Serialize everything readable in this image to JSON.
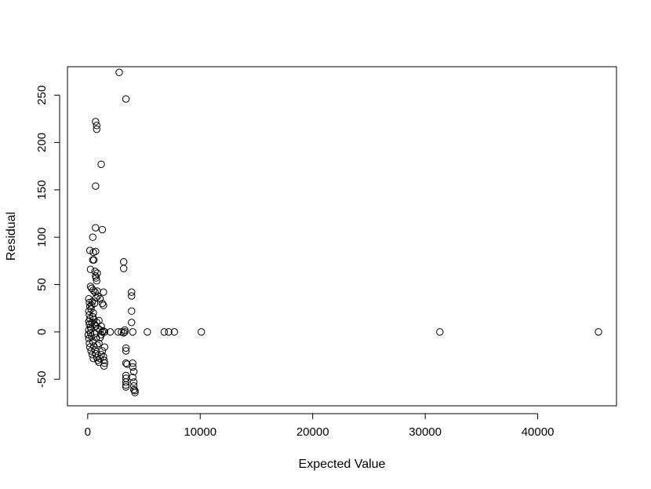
{
  "chart_data": {
    "type": "scatter",
    "title": "",
    "xlabel": "Expected Value",
    "ylabel": "Residual",
    "xlim": [
      -1800,
      47000
    ],
    "ylim": [
      -78,
      280
    ],
    "x_ticks": [
      0,
      10000,
      20000,
      30000,
      40000
    ],
    "x_tick_labels": [
      "0",
      "10000",
      "20000",
      "30000",
      "40000"
    ],
    "y_ticks": [
      -50,
      0,
      50,
      100,
      150,
      200,
      250
    ],
    "y_tick_labels": [
      "-50",
      "0",
      "50",
      "100",
      "150",
      "200",
      "250"
    ],
    "grid": false,
    "legend": "none",
    "marker": "open-circle",
    "colors": {
      "points": "#000000",
      "frame": "#000000",
      "background": "#ffffff"
    },
    "series": [
      {
        "points": [
          [
            2800,
            274
          ],
          [
            3400,
            246
          ],
          [
            700,
            222
          ],
          [
            800,
            218
          ],
          [
            800,
            214
          ],
          [
            1200,
            177
          ],
          [
            700,
            154
          ],
          [
            1300,
            108
          ],
          [
            700,
            110
          ],
          [
            200,
            86
          ],
          [
            500,
            84
          ],
          [
            700,
            85
          ],
          [
            450,
            100
          ],
          [
            450,
            76
          ],
          [
            550,
            76
          ],
          [
            250,
            66
          ],
          [
            650,
            64
          ],
          [
            700,
            59
          ],
          [
            850,
            62
          ],
          [
            750,
            57
          ],
          [
            800,
            54
          ],
          [
            250,
            48
          ],
          [
            350,
            46
          ],
          [
            500,
            44
          ],
          [
            650,
            42
          ],
          [
            850,
            43
          ],
          [
            1400,
            42
          ],
          [
            900,
            38
          ],
          [
            1100,
            35
          ],
          [
            1300,
            30
          ],
          [
            1400,
            28
          ],
          [
            100,
            35
          ],
          [
            150,
            31
          ],
          [
            200,
            27
          ],
          [
            300,
            24
          ],
          [
            100,
            22
          ],
          [
            150,
            18
          ],
          [
            200,
            14
          ],
          [
            100,
            11
          ],
          [
            150,
            8
          ],
          [
            250,
            5
          ],
          [
            300,
            3
          ],
          [
            100,
            2
          ],
          [
            350,
            10
          ],
          [
            450,
            16
          ],
          [
            500,
            20
          ],
          [
            550,
            13
          ],
          [
            600,
            8
          ],
          [
            700,
            6
          ],
          [
            800,
            10
          ],
          [
            900,
            4
          ],
          [
            1000,
            12
          ],
          [
            1100,
            2
          ],
          [
            1200,
            6
          ],
          [
            1300,
            0
          ],
          [
            1400,
            1
          ],
          [
            1500,
            0
          ],
          [
            50,
            -3
          ],
          [
            100,
            -7
          ],
          [
            150,
            -12
          ],
          [
            200,
            -16
          ],
          [
            300,
            -20
          ],
          [
            400,
            -24
          ],
          [
            500,
            -28
          ],
          [
            350,
            -5
          ],
          [
            450,
            -10
          ],
          [
            550,
            -15
          ],
          [
            650,
            -19
          ],
          [
            700,
            -23
          ],
          [
            800,
            -27
          ],
          [
            900,
            -30
          ],
          [
            1000,
            -32
          ],
          [
            1100,
            -28
          ],
          [
            1200,
            -24
          ],
          [
            1300,
            -20
          ],
          [
            1400,
            -26
          ],
          [
            1500,
            -33
          ],
          [
            1450,
            -36
          ],
          [
            1450,
            -30
          ],
          [
            1500,
            -16
          ],
          [
            1000,
            -12
          ],
          [
            1100,
            -6
          ],
          [
            1200,
            -3
          ],
          [
            600,
            -2
          ],
          [
            750,
            -6
          ],
          [
            850,
            -14
          ],
          [
            250,
            -1
          ],
          [
            350,
            28
          ],
          [
            400,
            32
          ],
          [
            600,
            30
          ],
          [
            750,
            36
          ],
          [
            3200,
            74
          ],
          [
            3200,
            67
          ],
          [
            3900,
            42
          ],
          [
            3900,
            38
          ],
          [
            3900,
            22
          ],
          [
            3900,
            10
          ],
          [
            3300,
            2
          ],
          [
            3300,
            0
          ],
          [
            3200,
            -1
          ],
          [
            3400,
            -17
          ],
          [
            3400,
            -20
          ],
          [
            3400,
            -33
          ],
          [
            3500,
            -34
          ],
          [
            4000,
            -33
          ],
          [
            4000,
            -37
          ],
          [
            4100,
            -42
          ],
          [
            4000,
            -48
          ],
          [
            3400,
            -46
          ],
          [
            3400,
            -49
          ],
          [
            3400,
            -53
          ],
          [
            3400,
            -56
          ],
          [
            3400,
            -58
          ],
          [
            4100,
            -53
          ],
          [
            4100,
            -57
          ],
          [
            4100,
            -61
          ],
          [
            4200,
            -62
          ],
          [
            4200,
            -64
          ],
          [
            2000,
            0
          ],
          [
            2700,
            0
          ],
          [
            3000,
            0
          ],
          [
            4000,
            0
          ],
          [
            5300,
            0
          ],
          [
            6800,
            0
          ],
          [
            7200,
            0
          ],
          [
            7700,
            0
          ],
          [
            10100,
            0
          ],
          [
            31300,
            0
          ],
          [
            45400,
            0
          ]
        ]
      }
    ]
  }
}
